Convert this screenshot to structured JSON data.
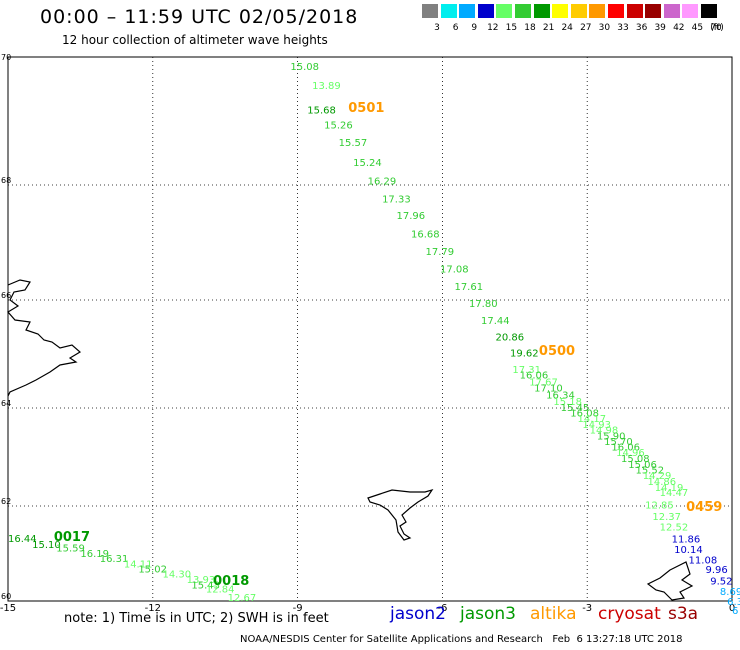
{
  "header": {
    "title": "00:00 – 11:59 UTC 02/05/2018",
    "subtitle": "12 hour collection of altimeter wave heights"
  },
  "legend": {
    "colors": [
      "#808080",
      "#00eeee",
      "#00aaff",
      "#0000cc",
      "#66ff66",
      "#33cc33",
      "#009900",
      "#ffff00",
      "#ffcc00",
      "#ff9900",
      "#ff0000",
      "#cc0000",
      "#990000",
      "#cc66cc",
      "#ff99ff",
      "#000000"
    ],
    "ticks": [
      "3",
      "6",
      "9",
      "12",
      "15",
      "18",
      "21",
      "24",
      "27",
      "30",
      "33",
      "36",
      "39",
      "42",
      "45",
      "70"
    ],
    "unit": "(ft)"
  },
  "footer": {
    "note": "note: 1) Time is in UTC; 2) SWH is in feet",
    "satellites": [
      {
        "name": "jason2",
        "color": "#0000cc"
      },
      {
        "name": "jason3",
        "color": "#009900"
      },
      {
        "name": "altika",
        "color": "#ff9900"
      },
      {
        "name": "cryosat",
        "color": "#cc0000"
      },
      {
        "name": "s3a",
        "color": "#990000"
      }
    ],
    "credit": "NOAA/NESDIS Center for Satellite Applications and Research   Feb  6 13:27:18 UTC 2018"
  },
  "chart_data": {
    "type": "scatter",
    "title": "00:00 – 11:59 UTC 02/05/2018",
    "subtitle": "12 hour collection of altimeter wave heights",
    "xlim": [
      -15,
      0
    ],
    "ylim": [
      60,
      70
    ],
    "x_ticks": [
      "-15",
      "-12",
      "-9",
      "-6",
      "-3",
      "0"
    ],
    "y_ticks": [
      "60",
      "62",
      "64",
      "66",
      "68",
      "70"
    ],
    "grid": true,
    "series": [
      {
        "name": "jason3",
        "color": "#009900",
        "points": [
          {
            "lon": -9.15,
            "lat": 69.8,
            "v": "15.08",
            "c": "#33cc33"
          },
          {
            "lon": -8.7,
            "lat": 69.5,
            "v": "13.89",
            "c": "#66ff66"
          },
          {
            "lon": -8.8,
            "lat": 69.12,
            "v": "15.68",
            "c": "#009900"
          },
          {
            "lon": -8.45,
            "lat": 68.88,
            "v": "15.26",
            "c": "#33cc33"
          },
          {
            "lon": -8.15,
            "lat": 68.61,
            "v": "15.57",
            "c": "#33cc33"
          },
          {
            "lon": -7.85,
            "lat": 68.3,
            "v": "15.24",
            "c": "#33cc33"
          },
          {
            "lon": -7.55,
            "lat": 68.01,
            "v": "16.29",
            "c": "#33cc33"
          },
          {
            "lon": -7.25,
            "lat": 67.7,
            "v": "17.33",
            "c": "#33cc33"
          },
          {
            "lon": -6.95,
            "lat": 67.41,
            "v": "17.96",
            "c": "#33cc33"
          },
          {
            "lon": -6.65,
            "lat": 67.09,
            "v": "16.68",
            "c": "#33cc33"
          },
          {
            "lon": -6.35,
            "lat": 66.78,
            "v": "17.79",
            "c": "#33cc33"
          },
          {
            "lon": -6.05,
            "lat": 66.48,
            "v": "17.08",
            "c": "#33cc33"
          },
          {
            "lon": -5.75,
            "lat": 66.17,
            "v": "17.61",
            "c": "#33cc33"
          },
          {
            "lon": -5.45,
            "lat": 65.87,
            "v": "17.80",
            "c": "#33cc33"
          },
          {
            "lon": -5.2,
            "lat": 65.56,
            "v": "17.44",
            "c": "#33cc33"
          },
          {
            "lon": -4.9,
            "lat": 65.25,
            "v": "20.86",
            "c": "#009900"
          },
          {
            "lon": -4.6,
            "lat": 64.95,
            "v": "19.62",
            "c": "#009900"
          },
          {
            "lon": -9.3,
            "lat": 69.6,
            "v": "",
            "c": "#33cc33"
          },
          {
            "lon": -15.0,
            "lat": 61.24,
            "v": "16.44",
            "c": "#009900"
          },
          {
            "lon": -14.5,
            "lat": 61.12,
            "v": "15.10",
            "c": "#009900"
          },
          {
            "lon": -14.0,
            "lat": 61.04,
            "v": "15.59",
            "c": "#33cc33"
          },
          {
            "lon": -13.5,
            "lat": 60.93,
            "v": "16.19",
            "c": "#33cc33"
          },
          {
            "lon": -13.1,
            "lat": 60.82,
            "v": "16.31",
            "c": "#33cc33"
          },
          {
            "lon": -12.6,
            "lat": 60.71,
            "v": "14.11",
            "c": "#66ff66"
          },
          {
            "lon": -12.3,
            "lat": 60.6,
            "v": "15.02",
            "c": "#33cc33"
          },
          {
            "lon": -11.8,
            "lat": 60.49,
            "v": "14.30",
            "c": "#66ff66"
          },
          {
            "lon": -11.3,
            "lat": 60.38,
            "v": "13.93",
            "c": "#66ff66"
          },
          {
            "lon": -11.2,
            "lat": 60.26,
            "v": "15.43",
            "c": "#33cc33"
          },
          {
            "lon": -10.9,
            "lat": 60.18,
            "v": "12.84",
            "c": "#66ff66"
          },
          {
            "lon": -10.45,
            "lat": 60.0,
            "v": "12.67",
            "c": "#66ff66"
          }
        ]
      },
      {
        "name": "jason3 (descending)",
        "color": "#66ff66",
        "points": [
          {
            "lon": -4.55,
            "lat": 64.65,
            "v": "17.31",
            "c": "#66ff66"
          },
          {
            "lon": -4.4,
            "lat": 64.55,
            "v": "16.06",
            "c": "#33cc33"
          },
          {
            "lon": -4.2,
            "lat": 64.42,
            "v": "17.67",
            "c": "#66ff66"
          },
          {
            "lon": -4.1,
            "lat": 64.31,
            "v": "17.10",
            "c": "#33cc33"
          },
          {
            "lon": -3.85,
            "lat": 64.18,
            "v": "16.34",
            "c": "#33cc33"
          },
          {
            "lon": -3.7,
            "lat": 64.06,
            "v": "15.18",
            "c": "#66ff66"
          },
          {
            "lon": -3.55,
            "lat": 63.94,
            "v": "15.45",
            "c": "#33cc33"
          },
          {
            "lon": -3.35,
            "lat": 63.83,
            "v": "16.08",
            "c": "#33cc33"
          },
          {
            "lon": -3.2,
            "lat": 63.71,
            "v": "14.17",
            "c": "#66ff66"
          },
          {
            "lon": -3.1,
            "lat": 63.59,
            "v": "14.93",
            "c": "#66ff66"
          },
          {
            "lon": -2.95,
            "lat": 63.48,
            "v": "14.98",
            "c": "#66ff66"
          },
          {
            "lon": -2.8,
            "lat": 63.36,
            "v": "15.90",
            "c": "#33cc33"
          },
          {
            "lon": -2.65,
            "lat": 63.24,
            "v": "15.70",
            "c": "#33cc33"
          },
          {
            "lon": -2.5,
            "lat": 63.13,
            "v": "16.06",
            "c": "#33cc33"
          },
          {
            "lon": -2.4,
            "lat": 63.02,
            "v": "14.96",
            "c": "#66ff66"
          },
          {
            "lon": -2.3,
            "lat": 62.9,
            "v": "15.08",
            "c": "#33cc33"
          },
          {
            "lon": -2.15,
            "lat": 62.78,
            "v": "15.06",
            "c": "#33cc33"
          },
          {
            "lon": -2.0,
            "lat": 62.66,
            "v": "15.52",
            "c": "#33cc33"
          },
          {
            "lon": -1.85,
            "lat": 62.55,
            "v": "14.29",
            "c": "#66ff66"
          },
          {
            "lon": -1.75,
            "lat": 62.43,
            "v": "14.86",
            "c": "#66ff66"
          },
          {
            "lon": -1.6,
            "lat": 62.31,
            "v": "14.19",
            "c": "#66ff66"
          },
          {
            "lon": -1.5,
            "lat": 62.2,
            "v": "14.47",
            "c": "#66ff66"
          }
        ]
      },
      {
        "name": "jason2",
        "color": "#0000cc",
        "points": [
          {
            "lon": -1.8,
            "lat": 61.95,
            "v": "12.85",
            "c": "#66ff66"
          },
          {
            "lon": -1.65,
            "lat": 61.71,
            "v": "12.37",
            "c": "#66ff66"
          },
          {
            "lon": -1.5,
            "lat": 61.48,
            "v": "12.52",
            "c": "#66ff66"
          },
          {
            "lon": -1.25,
            "lat": 61.23,
            "v": "11.86",
            "c": "#0000cc"
          },
          {
            "lon": -1.2,
            "lat": 61.01,
            "v": "10.14",
            "c": "#0000cc"
          },
          {
            "lon": -0.9,
            "lat": 60.79,
            "v": "11.08",
            "c": "#0000cc"
          },
          {
            "lon": -0.55,
            "lat": 60.59,
            "v": "9.96",
            "c": "#0000cc"
          },
          {
            "lon": -0.45,
            "lat": 60.35,
            "v": "9.52",
            "c": "#0000cc"
          },
          {
            "lon": -0.25,
            "lat": 60.13,
            "v": "8.69",
            "c": "#00aaff"
          },
          {
            "lon": -0.1,
            "lat": 59.92,
            "v": "6.3",
            "c": "#00aaff"
          },
          {
            "lon": 0.0,
            "lat": 59.72,
            "v": "6",
            "c": "#00aaff"
          }
        ]
      }
    ],
    "time_labels": [
      {
        "text": "0501",
        "lon": -7.95,
        "lat": 69.14,
        "color": "#ff9900"
      },
      {
        "text": "0500",
        "lon": -4.0,
        "lat": 64.98,
        "color": "#ff9900"
      },
      {
        "text": "0459",
        "lon": -0.95,
        "lat": 61.9,
        "color": "#ff9900"
      },
      {
        "text": "0017",
        "lon": -14.05,
        "lat": 61.26,
        "color": "#009900"
      },
      {
        "text": "0018",
        "lon": -10.75,
        "lat": 60.34,
        "color": "#009900"
      }
    ]
  }
}
